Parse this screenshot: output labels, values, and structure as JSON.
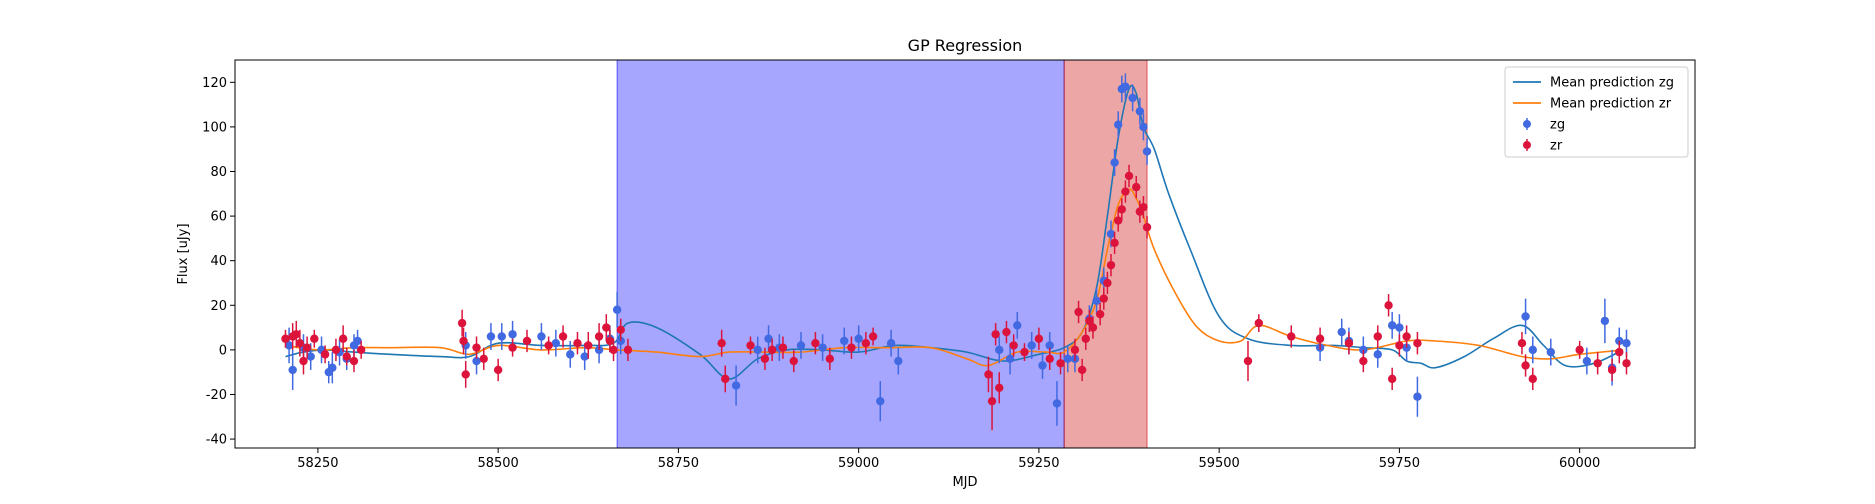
{
  "chart_data": {
    "type": "scatter",
    "title": "GP Regression",
    "xlabel": "MJD",
    "ylabel": "Flux [uJy]",
    "xlim": [
      58135,
      60160
    ],
    "ylim": [
      -44,
      130
    ],
    "xticks": [
      58250,
      58500,
      58750,
      59000,
      59250,
      59500,
      59750,
      60000
    ],
    "yticks": [
      -40,
      -20,
      0,
      20,
      40,
      60,
      80,
      100,
      120
    ],
    "grid": false,
    "legend_position": "top-right",
    "colors": {
      "zg_line": "#1f77b4",
      "zr_line": "#ff7f0e",
      "zg_points": "#4169e1",
      "zr_points": "#dc143c",
      "span_blue": "#0000ff",
      "span_red": "#cc0000"
    },
    "shaded_regions": [
      {
        "x0": 58665,
        "x1": 59285,
        "color": "#0000ff",
        "alpha": 0.35
      },
      {
        "x0": 59285,
        "x1": 59400,
        "color": "#cc0000",
        "alpha": 0.35
      }
    ],
    "series": [
      {
        "name": "Mean prediction zg",
        "kind": "line",
        "color": "#1f77b4",
        "x": [
          58205,
          58230,
          58260,
          58300,
          58350,
          58420,
          58460,
          58500,
          58560,
          58620,
          58660,
          58680,
          58720,
          58780,
          58820,
          58860,
          58900,
          58950,
          59000,
          59050,
          59100,
          59150,
          59200,
          59250,
          59285,
          59310,
          59330,
          59345,
          59360,
          59375,
          59385,
          59395,
          59410,
          59430,
          59460,
          59500,
          59540,
          59600,
          59660,
          59700,
          59740,
          59760,
          59780,
          59800,
          59840,
          59880,
          59920,
          59950,
          59980,
          60020,
          60060
        ],
        "y": [
          -3,
          -1,
          0,
          -1,
          -2,
          -3,
          -3,
          3,
          2,
          2,
          3,
          12,
          10,
          -2,
          -13,
          -4,
          0,
          0,
          -1,
          2,
          1,
          -1,
          -5,
          -2,
          1,
          8,
          28,
          60,
          95,
          117,
          115,
          100,
          90,
          70,
          45,
          15,
          5,
          2,
          2,
          1,
          0,
          -5,
          -6,
          -8,
          -3,
          5,
          11,
          2,
          -7,
          -6,
          0
        ]
      },
      {
        "name": "Mean prediction zr",
        "kind": "line",
        "color": "#ff7f0e",
        "x": [
          58205,
          58250,
          58300,
          58350,
          58420,
          58460,
          58500,
          58560,
          58620,
          58665,
          58720,
          58780,
          58820,
          58870,
          58920,
          58980,
          59040,
          59100,
          59150,
          59180,
          59220,
          59260,
          59285,
          59310,
          59330,
          59345,
          59360,
          59375,
          59385,
          59395,
          59410,
          59440,
          59470,
          59500,
          59530,
          59555,
          59600,
          59650,
          59700,
          59760,
          59800,
          59860,
          59920,
          59960,
          60000,
          60060
        ],
        "y": [
          2,
          0,
          1,
          1,
          1,
          -2,
          2,
          0,
          1,
          0,
          -1,
          -3,
          -1,
          -1,
          -1,
          1,
          1,
          1,
          -4,
          -7,
          -1,
          -1,
          -1,
          8,
          22,
          45,
          65,
          72,
          68,
          60,
          45,
          25,
          10,
          4,
          4,
          11,
          6,
          2,
          0,
          4,
          4,
          2,
          -3,
          -4,
          -2,
          0
        ]
      },
      {
        "name": "zg",
        "kind": "errorbar",
        "color": "#4169e1",
        "x": [
          58210,
          58215,
          58230,
          58240,
          58255,
          58265,
          58270,
          58280,
          58290,
          58300,
          58305,
          58455,
          58470,
          58490,
          58505,
          58520,
          58560,
          58580,
          58600,
          58620,
          58640,
          58655,
          58665,
          58670,
          58830,
          58860,
          58875,
          58890,
          58920,
          58950,
          58980,
          59000,
          59030,
          59045,
          59055,
          59195,
          59210,
          59220,
          59240,
          59255,
          59265,
          59275,
          59290,
          59300,
          59320,
          59330,
          59340,
          59350,
          59355,
          59360,
          59365,
          59370,
          59380,
          59390,
          59395,
          59400,
          59640,
          59670,
          59680,
          59700,
          59720,
          59740,
          59750,
          59760,
          59775,
          59925,
          59935,
          59960,
          60010,
          60035,
          60045,
          60055,
          60065
        ],
        "y": [
          2,
          -9,
          1,
          -3,
          0,
          -10,
          -8,
          -1,
          -4,
          2,
          4,
          2,
          -5,
          6,
          6,
          7,
          6,
          3,
          -2,
          -3,
          0,
          5,
          18,
          4,
          -16,
          0,
          5,
          1,
          2,
          1,
          4,
          5,
          -23,
          3,
          -5,
          0,
          -4,
          11,
          2,
          -7,
          2,
          -24,
          -4,
          -4,
          14,
          22,
          31,
          52,
          84,
          101,
          117,
          118,
          113,
          107,
          100,
          89,
          1,
          8,
          4,
          0,
          -2,
          11,
          10,
          1,
          -21,
          15,
          0,
          -1,
          -5,
          13,
          -8,
          4,
          3
        ],
        "yerr": [
          8,
          9,
          6,
          6,
          6,
          5,
          7,
          6,
          5,
          5,
          5,
          6,
          6,
          6,
          6,
          6,
          6,
          6,
          6,
          6,
          6,
          6,
          8,
          6,
          9,
          6,
          6,
          6,
          6,
          6,
          6,
          6,
          9,
          6,
          6,
          6,
          7,
          6,
          6,
          6,
          6,
          10,
          6,
          6,
          6,
          6,
          6,
          6,
          6,
          6,
          6,
          6,
          6,
          6,
          6,
          6,
          6,
          6,
          6,
          6,
          6,
          6,
          6,
          6,
          9,
          8,
          6,
          6,
          6,
          10,
          8,
          6,
          6
        ]
      },
      {
        "name": "zr",
        "kind": "errorbar",
        "color": "#dc143c",
        "x": [
          58205,
          58215,
          58220,
          58225,
          58230,
          58235,
          58245,
          58260,
          58275,
          58285,
          58290,
          58300,
          58310,
          58450,
          58452,
          58455,
          58470,
          58480,
          58500,
          58520,
          58540,
          58570,
          58590,
          58610,
          58625,
          58640,
          58650,
          58655,
          58660,
          58670,
          58680,
          58810,
          58815,
          58850,
          58870,
          58880,
          58895,
          58910,
          58940,
          58960,
          58990,
          59010,
          59020,
          59180,
          59185,
          59190,
          59195,
          59205,
          59215,
          59230,
          59250,
          59265,
          59280,
          59300,
          59305,
          59310,
          59315,
          59320,
          59325,
          59335,
          59340,
          59345,
          59350,
          59355,
          59360,
          59365,
          59370,
          59375,
          59385,
          59390,
          59395,
          59400,
          59540,
          59555,
          59600,
          59640,
          59680,
          59700,
          59720,
          59735,
          59740,
          59750,
          59760,
          59775,
          59920,
          59925,
          59935,
          60000,
          60025,
          60045,
          60055,
          60065
        ],
        "y": [
          5,
          6,
          7,
          3,
          -5,
          1,
          5,
          -2,
          0,
          5,
          -3,
          -5,
          0,
          12,
          4,
          -11,
          1,
          -4,
          -9,
          1,
          4,
          2,
          6,
          3,
          2,
          6,
          10,
          4,
          0,
          9,
          0,
          3,
          -13,
          2,
          -4,
          0,
          1,
          -5,
          3,
          -4,
          1,
          3,
          6,
          -11,
          -23,
          7,
          -17,
          8,
          2,
          -1,
          5,
          -4,
          -6,
          0,
          17,
          -9,
          5,
          13,
          10,
          16,
          23,
          30,
          38,
          48,
          58,
          63,
          71,
          78,
          73,
          62,
          64,
          55,
          -5,
          12,
          6,
          5,
          3,
          -5,
          6,
          20,
          -13,
          2,
          6,
          3,
          3,
          -7,
          -13,
          0,
          -6,
          -9,
          -1,
          -6
        ],
        "yerr": [
          4,
          6,
          6,
          6,
          6,
          5,
          4,
          4,
          5,
          6,
          4,
          5,
          4,
          6,
          6,
          6,
          5,
          5,
          5,
          4,
          5,
          4,
          5,
          5,
          6,
          6,
          6,
          5,
          5,
          5,
          5,
          6,
          6,
          4,
          5,
          5,
          5,
          5,
          5,
          5,
          5,
          5,
          4,
          8,
          13,
          5,
          7,
          5,
          5,
          4,
          5,
          5,
          5,
          5,
          5,
          5,
          5,
          5,
          5,
          5,
          5,
          5,
          5,
          5,
          5,
          5,
          5,
          5,
          5,
          5,
          5,
          5,
          9,
          4,
          5,
          5,
          5,
          5,
          5,
          5,
          5,
          5,
          5,
          5,
          5,
          5,
          5,
          4,
          5,
          5,
          5,
          5
        ]
      }
    ]
  }
}
